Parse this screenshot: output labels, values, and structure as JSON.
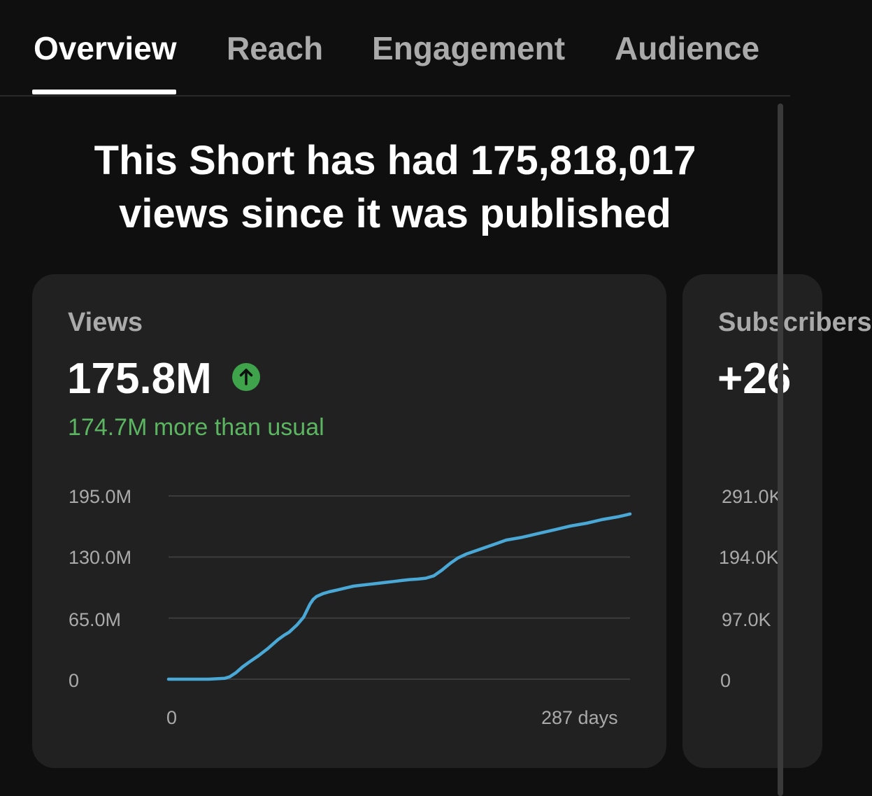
{
  "tabs": [
    {
      "label": "Overview",
      "active": true
    },
    {
      "label": "Reach",
      "active": false
    },
    {
      "label": "Engagement",
      "active": false
    },
    {
      "label": "Audience",
      "active": false
    }
  ],
  "headline": {
    "line1": "This Short has had 175,818,017",
    "line2": "views since it was published"
  },
  "cards": {
    "views": {
      "label": "Views",
      "value": "175.8M",
      "trend_icon": "arrow-up-icon",
      "delta": "174.7M more than usual",
      "y_ticks": [
        "195.0M",
        "130.0M",
        "65.0M",
        "0"
      ],
      "x_ticks": [
        "0",
        "287 days"
      ]
    },
    "subscribers": {
      "label": "Subscribers",
      "value": "+26",
      "y_ticks": [
        "291.0K",
        "194.0K",
        "97.0K",
        "0"
      ]
    }
  },
  "colors": {
    "background": "#0f0f0f",
    "card": "#212121",
    "line": "#4aa8d6",
    "positive": "#5bb561",
    "badge": "#3ea34a"
  },
  "chart_data": {
    "type": "line",
    "title": "",
    "xlabel": "",
    "ylabel": "",
    "xlim": [
      0,
      287
    ],
    "ylim": [
      0,
      195000000
    ],
    "y_ticks": [
      0,
      65000000,
      130000000,
      195000000
    ],
    "x_ticks": [
      0,
      287
    ],
    "grid": true,
    "series": [
      {
        "x": [
          0,
          25,
          35,
          38,
          42,
          46,
          50,
          56,
          62,
          68,
          72,
          75,
          80,
          84,
          88,
          90,
          92,
          96,
          100,
          105,
          110,
          115,
          120,
          125,
          130,
          135,
          140,
          145,
          150,
          155,
          160,
          165,
          170,
          175,
          180,
          185,
          190,
          195,
          200,
          205,
          210,
          215,
          220,
          225,
          230,
          235,
          240,
          245,
          250,
          255,
          260,
          265,
          270,
          275,
          280,
          287
        ],
        "y": [
          0,
          0,
          1000000,
          2500000,
          7000000,
          13000000,
          18000000,
          25000000,
          33000000,
          42000000,
          47000000,
          50000000,
          58000000,
          66000000,
          80000000,
          85000000,
          88000000,
          91000000,
          93000000,
          95000000,
          97000000,
          99000000,
          100000000,
          101000000,
          102000000,
          103000000,
          104000000,
          105000000,
          106000000,
          106500000,
          107500000,
          110000000,
          116000000,
          123000000,
          129000000,
          133000000,
          136000000,
          139000000,
          142000000,
          145000000,
          148000000,
          149500000,
          151000000,
          153000000,
          155000000,
          157000000,
          159000000,
          161000000,
          163000000,
          164500000,
          166000000,
          168000000,
          170000000,
          171500000,
          173000000,
          175800000
        ]
      }
    ]
  }
}
